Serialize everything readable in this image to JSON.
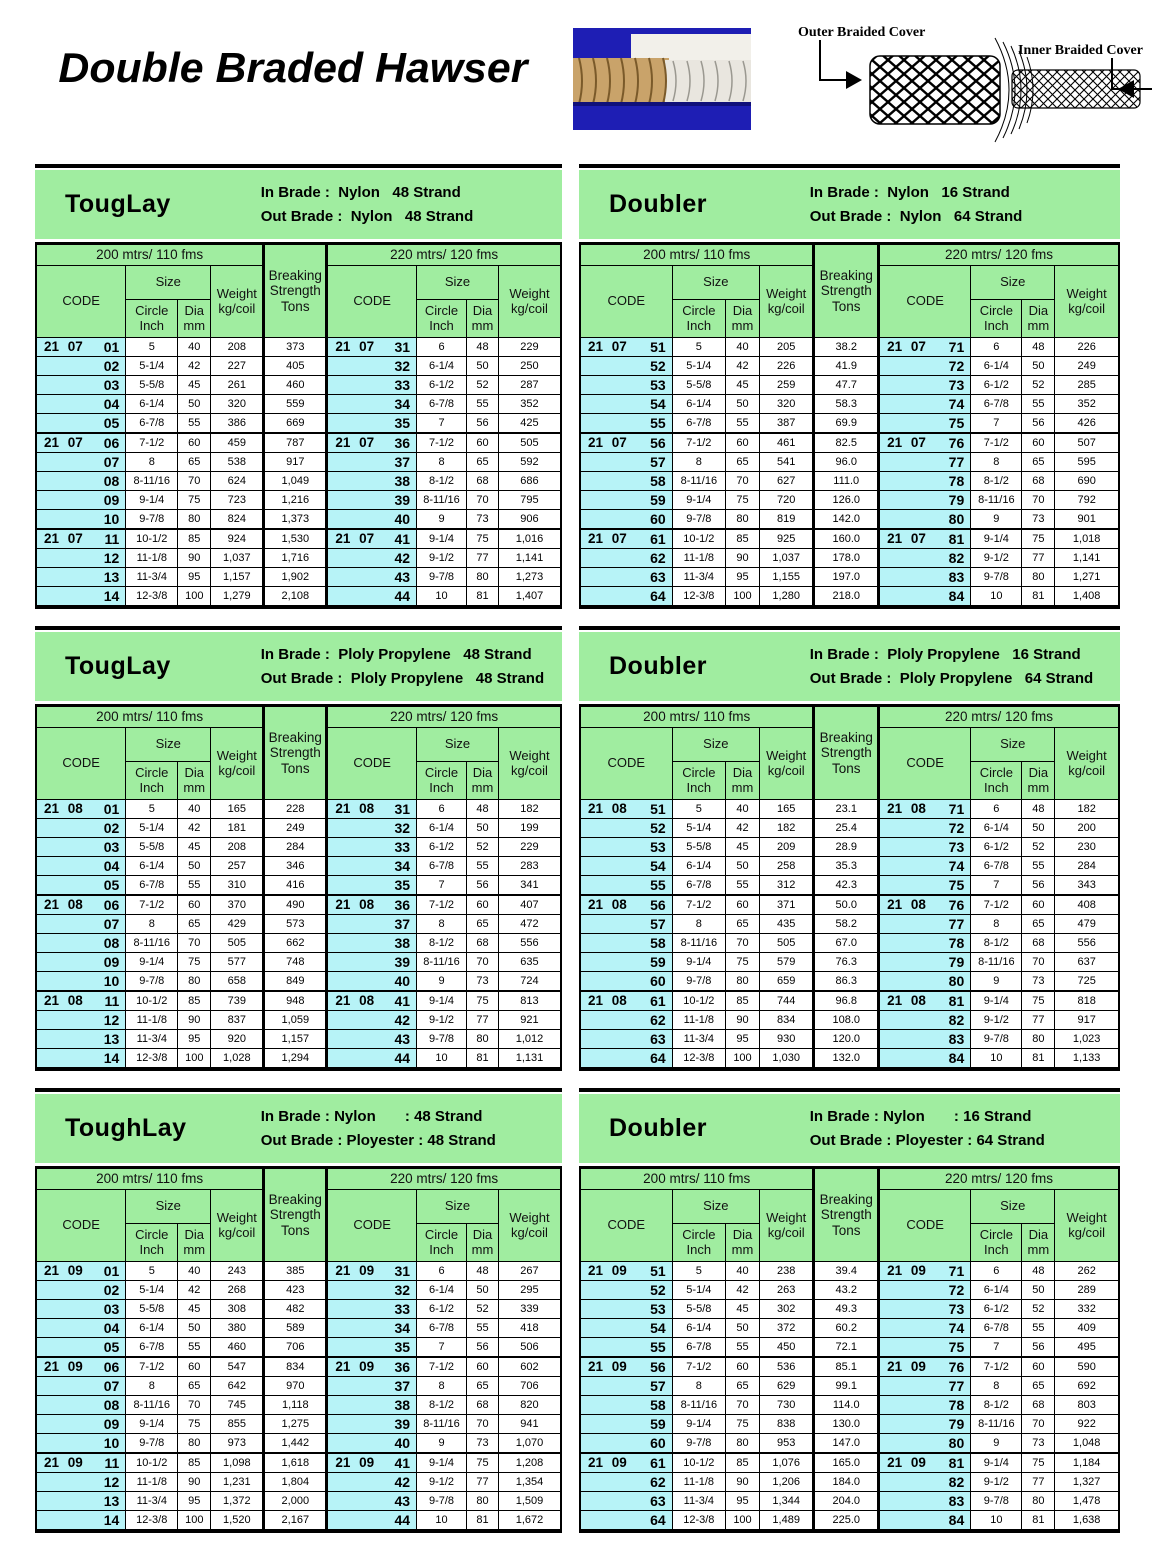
{
  "page": {
    "title": "Double Braded Hawser",
    "diagram": {
      "outer_label": "Outer Braided Cover",
      "inner_label": "Inner Braided Cover"
    }
  },
  "shared": {
    "group_left": "200 mtrs/ 110 fms",
    "group_right": "220 mtrs/ 120 fms",
    "code": "CODE",
    "size": "Size",
    "circle": "Circle\nInch",
    "dia": "Dia\nmm",
    "weight": "Weight\nkg/coil",
    "breaking": "Breaking\nStrength\nTons"
  },
  "tables": [
    {
      "name": "TougLay",
      "spec_in": "In Brade :  Nylon   48 Strand",
      "spec_out": "Out Brade :  Nylon   48 Strand",
      "rows": [
        [
          "21 07",
          "01",
          "5",
          "40",
          "208",
          "373",
          "21 07",
          "31",
          "6",
          "48",
          "229"
        ],
        [
          "",
          "02",
          "5-1/4",
          "42",
          "227",
          "405",
          "",
          "32",
          "6-1/4",
          "50",
          "250"
        ],
        [
          "",
          "03",
          "5-5/8",
          "45",
          "261",
          "460",
          "",
          "33",
          "6-1/2",
          "52",
          "287"
        ],
        [
          "",
          "04",
          "6-1/4",
          "50",
          "320",
          "559",
          "",
          "34",
          "6-7/8",
          "55",
          "352"
        ],
        [
          "",
          "05",
          "6-7/8",
          "55",
          "386",
          "669",
          "",
          "35",
          "7",
          "56",
          "425"
        ],
        [
          "21 07",
          "06",
          "7-1/2",
          "60",
          "459",
          "787",
          "21 07",
          "36",
          "7-1/2",
          "60",
          "505"
        ],
        [
          "",
          "07",
          "8",
          "65",
          "538",
          "917",
          "",
          "37",
          "8",
          "65",
          "592"
        ],
        [
          "",
          "08",
          "8-11/16",
          "70",
          "624",
          "1,049",
          "",
          "38",
          "8-1/2",
          "68",
          "686"
        ],
        [
          "",
          "09",
          "9-1/4",
          "75",
          "723",
          "1,216",
          "",
          "39",
          "8-11/16",
          "70",
          "795"
        ],
        [
          "",
          "10",
          "9-7/8",
          "80",
          "824",
          "1,373",
          "",
          "40",
          "9",
          "73",
          "906"
        ],
        [
          "21 07",
          "11",
          "10-1/2",
          "85",
          "924",
          "1,530",
          "21 07",
          "41",
          "9-1/4",
          "75",
          "1,016"
        ],
        [
          "",
          "12",
          "11-1/8",
          "90",
          "1,037",
          "1,716",
          "",
          "42",
          "9-1/2",
          "77",
          "1,141"
        ],
        [
          "",
          "13",
          "11-3/4",
          "95",
          "1,157",
          "1,902",
          "",
          "43",
          "9-7/8",
          "80",
          "1,273"
        ],
        [
          "",
          "14",
          "12-3/8",
          "100",
          "1,279",
          "2,108",
          "",
          "44",
          "10",
          "81",
          "1,407"
        ]
      ]
    },
    {
      "name": "Doubler",
      "spec_in": "In Brade :  Nylon   16 Strand",
      "spec_out": "Out Brade :  Nylon   64 Strand",
      "rows": [
        [
          "21 07",
          "51",
          "5",
          "40",
          "205",
          "38.2",
          "21 07",
          "71",
          "6",
          "48",
          "226"
        ],
        [
          "",
          "52",
          "5-1/4",
          "42",
          "226",
          "41.9",
          "",
          "72",
          "6-1/4",
          "50",
          "249"
        ],
        [
          "",
          "53",
          "5-5/8",
          "45",
          "259",
          "47.7",
          "",
          "73",
          "6-1/2",
          "52",
          "285"
        ],
        [
          "",
          "54",
          "6-1/4",
          "50",
          "320",
          "58.3",
          "",
          "74",
          "6-7/8",
          "55",
          "352"
        ],
        [
          "",
          "55",
          "6-7/8",
          "55",
          "387",
          "69.9",
          "",
          "75",
          "7",
          "56",
          "426"
        ],
        [
          "21 07",
          "56",
          "7-1/2",
          "60",
          "461",
          "82.5",
          "21 07",
          "76",
          "7-1/2",
          "60",
          "507"
        ],
        [
          "",
          "57",
          "8",
          "65",
          "541",
          "96.0",
          "",
          "77",
          "8",
          "65",
          "595"
        ],
        [
          "",
          "58",
          "8-11/16",
          "70",
          "627",
          "111.0",
          "",
          "78",
          "8-1/2",
          "68",
          "690"
        ],
        [
          "",
          "59",
          "9-1/4",
          "75",
          "720",
          "126.0",
          "",
          "79",
          "8-11/16",
          "70",
          "792"
        ],
        [
          "",
          "60",
          "9-7/8",
          "80",
          "819",
          "142.0",
          "",
          "80",
          "9",
          "73",
          "901"
        ],
        [
          "21 07",
          "61",
          "10-1/2",
          "85",
          "925",
          "160.0",
          "21 07",
          "81",
          "9-1/4",
          "75",
          "1,018"
        ],
        [
          "",
          "62",
          "11-1/8",
          "90",
          "1,037",
          "178.0",
          "",
          "82",
          "9-1/2",
          "77",
          "1,141"
        ],
        [
          "",
          "63",
          "11-3/4",
          "95",
          "1,155",
          "197.0",
          "",
          "83",
          "9-7/8",
          "80",
          "1,271"
        ],
        [
          "",
          "64",
          "12-3/8",
          "100",
          "1,280",
          "218.0",
          "",
          "84",
          "10",
          "81",
          "1,408"
        ]
      ]
    },
    {
      "name": "TougLay",
      "spec_in": "In Brade :  Ploly Propylene   48 Strand",
      "spec_out": "Out Brade :  Ploly Propylene   48 Strand",
      "rows": [
        [
          "21 08",
          "01",
          "5",
          "40",
          "165",
          "228",
          "21 08",
          "31",
          "6",
          "48",
          "182"
        ],
        [
          "",
          "02",
          "5-1/4",
          "42",
          "181",
          "249",
          "",
          "32",
          "6-1/4",
          "50",
          "199"
        ],
        [
          "",
          "03",
          "5-5/8",
          "45",
          "208",
          "284",
          "",
          "33",
          "6-1/2",
          "52",
          "229"
        ],
        [
          "",
          "04",
          "6-1/4",
          "50",
          "257",
          "346",
          "",
          "34",
          "6-7/8",
          "55",
          "283"
        ],
        [
          "",
          "05",
          "6-7/8",
          "55",
          "310",
          "416",
          "",
          "35",
          "7",
          "56",
          "341"
        ],
        [
          "21 08",
          "06",
          "7-1/2",
          "60",
          "370",
          "490",
          "21 08",
          "36",
          "7-1/2",
          "60",
          "407"
        ],
        [
          "",
          "07",
          "8",
          "65",
          "429",
          "573",
          "",
          "37",
          "8",
          "65",
          "472"
        ],
        [
          "",
          "08",
          "8-11/16",
          "70",
          "505",
          "662",
          "",
          "38",
          "8-1/2",
          "68",
          "556"
        ],
        [
          "",
          "09",
          "9-1/4",
          "75",
          "577",
          "748",
          "",
          "39",
          "8-11/16",
          "70",
          "635"
        ],
        [
          "",
          "10",
          "9-7/8",
          "80",
          "658",
          "849",
          "",
          "40",
          "9",
          "73",
          "724"
        ],
        [
          "21 08",
          "11",
          "10-1/2",
          "85",
          "739",
          "948",
          "21 08",
          "41",
          "9-1/4",
          "75",
          "813"
        ],
        [
          "",
          "12",
          "11-1/8",
          "90",
          "837",
          "1,059",
          "",
          "42",
          "9-1/2",
          "77",
          "921"
        ],
        [
          "",
          "13",
          "11-3/4",
          "95",
          "920",
          "1,157",
          "",
          "43",
          "9-7/8",
          "80",
          "1,012"
        ],
        [
          "",
          "14",
          "12-3/8",
          "100",
          "1,028",
          "1,294",
          "",
          "44",
          "10",
          "81",
          "1,131"
        ]
      ]
    },
    {
      "name": "Doubler",
      "spec_in": "In Brade :  Ploly Propylene   16 Strand",
      "spec_out": "Out Brade :  Ploly Propylene   64 Strand",
      "rows": [
        [
          "21 08",
          "51",
          "5",
          "40",
          "165",
          "23.1",
          "21 08",
          "71",
          "6",
          "48",
          "182"
        ],
        [
          "",
          "52",
          "5-1/4",
          "42",
          "182",
          "25.4",
          "",
          "72",
          "6-1/4",
          "50",
          "200"
        ],
        [
          "",
          "53",
          "5-5/8",
          "45",
          "209",
          "28.9",
          "",
          "73",
          "6-1/2",
          "52",
          "230"
        ],
        [
          "",
          "54",
          "6-1/4",
          "50",
          "258",
          "35.3",
          "",
          "74",
          "6-7/8",
          "55",
          "284"
        ],
        [
          "",
          "55",
          "6-7/8",
          "55",
          "312",
          "42.3",
          "",
          "75",
          "7",
          "56",
          "343"
        ],
        [
          "21 08",
          "56",
          "7-1/2",
          "60",
          "371",
          "50.0",
          "21 08",
          "76",
          "7-1/2",
          "60",
          "408"
        ],
        [
          "",
          "57",
          "8",
          "65",
          "435",
          "58.2",
          "",
          "77",
          "8",
          "65",
          "479"
        ],
        [
          "",
          "58",
          "8-11/16",
          "70",
          "505",
          "67.0",
          "",
          "78",
          "8-1/2",
          "68",
          "556"
        ],
        [
          "",
          "59",
          "9-1/4",
          "75",
          "579",
          "76.3",
          "",
          "79",
          "8-11/16",
          "70",
          "637"
        ],
        [
          "",
          "60",
          "9-7/8",
          "80",
          "659",
          "86.3",
          "",
          "80",
          "9",
          "73",
          "725"
        ],
        [
          "21 08",
          "61",
          "10-1/2",
          "85",
          "744",
          "96.8",
          "21 08",
          "81",
          "9-1/4",
          "75",
          "818"
        ],
        [
          "",
          "62",
          "11-1/8",
          "90",
          "834",
          "108.0",
          "",
          "82",
          "9-1/2",
          "77",
          "917"
        ],
        [
          "",
          "63",
          "11-3/4",
          "95",
          "930",
          "120.0",
          "",
          "83",
          "9-7/8",
          "80",
          "1,023"
        ],
        [
          "",
          "64",
          "12-3/8",
          "100",
          "1,030",
          "132.0",
          "",
          "84",
          "10",
          "81",
          "1,133"
        ]
      ]
    },
    {
      "name": "ToughLay",
      "spec_in": "In Brade : Nylon       : 48 Strand",
      "spec_out": "Out Brade : Ployester : 48 Strand",
      "rows": [
        [
          "21 09",
          "01",
          "5",
          "40",
          "243",
          "385",
          "21 09",
          "31",
          "6",
          "48",
          "267"
        ],
        [
          "",
          "02",
          "5-1/4",
          "42",
          "268",
          "423",
          "",
          "32",
          "6-1/4",
          "50",
          "295"
        ],
        [
          "",
          "03",
          "5-5/8",
          "45",
          "308",
          "482",
          "",
          "33",
          "6-1/2",
          "52",
          "339"
        ],
        [
          "",
          "04",
          "6-1/4",
          "50",
          "380",
          "589",
          "",
          "34",
          "6-7/8",
          "55",
          "418"
        ],
        [
          "",
          "05",
          "6-7/8",
          "55",
          "460",
          "706",
          "",
          "35",
          "7",
          "56",
          "506"
        ],
        [
          "21 09",
          "06",
          "7-1/2",
          "60",
          "547",
          "834",
          "21 09",
          "36",
          "7-1/2",
          "60",
          "602"
        ],
        [
          "",
          "07",
          "8",
          "65",
          "642",
          "970",
          "",
          "37",
          "8",
          "65",
          "706"
        ],
        [
          "",
          "08",
          "8-11/16",
          "70",
          "745",
          "1,118",
          "",
          "38",
          "8-1/2",
          "68",
          "820"
        ],
        [
          "",
          "09",
          "9-1/4",
          "75",
          "855",
          "1,275",
          "",
          "39",
          "8-11/16",
          "70",
          "941"
        ],
        [
          "",
          "10",
          "9-7/8",
          "80",
          "973",
          "1,442",
          "",
          "40",
          "9",
          "73",
          "1,070"
        ],
        [
          "21 09",
          "11",
          "10-1/2",
          "85",
          "1,098",
          "1,618",
          "21 09",
          "41",
          "9-1/4",
          "75",
          "1,208"
        ],
        [
          "",
          "12",
          "11-1/8",
          "90",
          "1,231",
          "1,804",
          "",
          "42",
          "9-1/2",
          "77",
          "1,354"
        ],
        [
          "",
          "13",
          "11-3/4",
          "95",
          "1,372",
          "2,000",
          "",
          "43",
          "9-7/8",
          "80",
          "1,509"
        ],
        [
          "",
          "14",
          "12-3/8",
          "100",
          "1,520",
          "2,167",
          "",
          "44",
          "10",
          "81",
          "1,672"
        ]
      ]
    },
    {
      "name": "Doubler",
      "spec_in": "In Brade : Nylon       : 16 Strand",
      "spec_out": "Out Brade : Ployester : 64 Strand",
      "rows": [
        [
          "21 09",
          "51",
          "5",
          "40",
          "238",
          "39.4",
          "21 09",
          "71",
          "6",
          "48",
          "262"
        ],
        [
          "",
          "52",
          "5-1/4",
          "42",
          "263",
          "43.2",
          "",
          "72",
          "6-1/4",
          "50",
          "289"
        ],
        [
          "",
          "53",
          "5-5/8",
          "45",
          "302",
          "49.3",
          "",
          "73",
          "6-1/2",
          "52",
          "332"
        ],
        [
          "",
          "54",
          "6-1/4",
          "50",
          "372",
          "60.2",
          "",
          "74",
          "6-7/8",
          "55",
          "409"
        ],
        [
          "",
          "55",
          "6-7/8",
          "55",
          "450",
          "72.1",
          "",
          "75",
          "7",
          "56",
          "495"
        ],
        [
          "21 09",
          "56",
          "7-1/2",
          "60",
          "536",
          "85.1",
          "21 09",
          "76",
          "7-1/2",
          "60",
          "590"
        ],
        [
          "",
          "57",
          "8",
          "65",
          "629",
          "99.1",
          "",
          "77",
          "8",
          "65",
          "692"
        ],
        [
          "",
          "58",
          "8-11/16",
          "70",
          "730",
          "114.0",
          "",
          "78",
          "8-1/2",
          "68",
          "803"
        ],
        [
          "",
          "59",
          "9-1/4",
          "75",
          "838",
          "130.0",
          "",
          "79",
          "8-11/16",
          "70",
          "922"
        ],
        [
          "",
          "60",
          "9-7/8",
          "80",
          "953",
          "147.0",
          "",
          "80",
          "9",
          "73",
          "1,048"
        ],
        [
          "21 09",
          "61",
          "10-1/2",
          "85",
          "1,076",
          "165.0",
          "21 09",
          "81",
          "9-1/4",
          "75",
          "1,184"
        ],
        [
          "",
          "62",
          "11-1/8",
          "90",
          "1,206",
          "184.0",
          "",
          "82",
          "9-1/2",
          "77",
          "1,327"
        ],
        [
          "",
          "63",
          "11-3/4",
          "95",
          "1,344",
          "204.0",
          "",
          "83",
          "9-7/8",
          "80",
          "1,478"
        ],
        [
          "",
          "64",
          "12-3/8",
          "100",
          "1,489",
          "225.0",
          "",
          "84",
          "10",
          "81",
          "1,638"
        ]
      ]
    }
  ],
  "colors": {
    "header_green": "#a0eda0",
    "code_cyan": "#b7f3f7",
    "photo_blue": "#1e1eb4"
  }
}
